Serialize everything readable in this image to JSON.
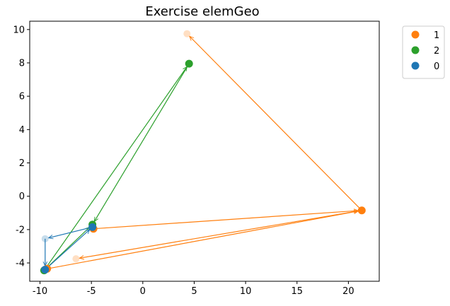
{
  "chart_data": {
    "type": "scatter",
    "title": "Exercise elemGeo",
    "xlabel": "",
    "ylabel": "",
    "xlim": [
      -11.0,
      23.0
    ],
    "ylim": [
      -5.1,
      10.5
    ],
    "xticks": [
      -10,
      -5,
      0,
      5,
      10,
      15,
      20
    ],
    "yticks": [
      -4,
      -2,
      0,
      2,
      4,
      6,
      8,
      10
    ],
    "grid": false,
    "legend_position": "outside-top-right",
    "series": [
      {
        "name": "1",
        "color": "#ff7f0e",
        "points": [
          {
            "x": 21.3,
            "y": -0.85,
            "faded": false
          },
          {
            "x": -4.8,
            "y": -1.95,
            "faded": false
          },
          {
            "x": -9.3,
            "y": -4.35,
            "faded": false
          },
          {
            "x": 4.3,
            "y": 9.75,
            "faded": true
          },
          {
            "x": -6.5,
            "y": -3.75,
            "faded": true
          }
        ],
        "arrows": [
          {
            "from": [
              21.3,
              -0.85
            ],
            "to": [
              4.3,
              9.75
            ]
          },
          {
            "from": [
              -4.8,
              -1.95
            ],
            "to": [
              21.3,
              -0.85
            ]
          },
          {
            "from": [
              -9.3,
              -4.35
            ],
            "to": [
              21.3,
              -0.85
            ]
          },
          {
            "from": [
              21.3,
              -0.85
            ],
            "to": [
              -6.5,
              -3.75
            ]
          }
        ]
      },
      {
        "name": "2",
        "color": "#2ca02c",
        "points": [
          {
            "x": 4.5,
            "y": 7.95,
            "faded": false
          },
          {
            "x": -4.9,
            "y": -1.7,
            "faded": false
          },
          {
            "x": -9.6,
            "y": -4.45,
            "faded": false
          }
        ],
        "arrows": [
          {
            "from": [
              -9.6,
              -4.45
            ],
            "to": [
              4.5,
              7.95
            ]
          },
          {
            "from": [
              4.5,
              7.95
            ],
            "to": [
              -4.9,
              -1.7
            ]
          },
          {
            "from": [
              -9.6,
              -4.45
            ],
            "to": [
              -4.9,
              -1.7
            ]
          }
        ]
      },
      {
        "name": "0",
        "color": "#1f77b4",
        "points": [
          {
            "x": -4.9,
            "y": -1.85,
            "faded": false
          },
          {
            "x": -9.5,
            "y": -4.4,
            "faded": false
          },
          {
            "x": -9.5,
            "y": -2.55,
            "faded": true
          }
        ],
        "arrows": [
          {
            "from": [
              -9.5,
              -4.4
            ],
            "to": [
              -4.9,
              -1.85
            ]
          },
          {
            "from": [
              -4.9,
              -1.85
            ],
            "to": [
              -9.5,
              -2.55
            ]
          },
          {
            "from": [
              -9.5,
              -2.55
            ],
            "to": [
              -9.5,
              -4.4
            ]
          }
        ]
      }
    ]
  }
}
